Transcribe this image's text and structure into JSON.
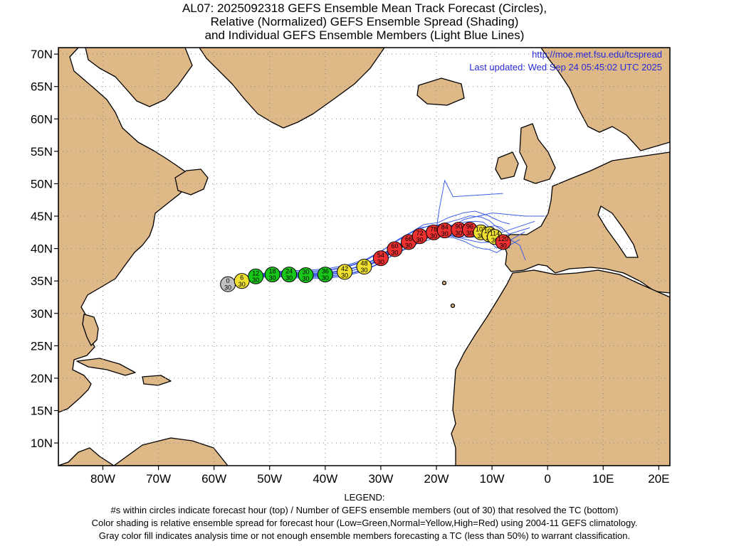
{
  "title": {
    "line1": "AL07: 2025092318 GEFS Ensemble Mean Track Forecast (Circles),",
    "line2": "Relative (Normalized) GEFS Ensemble Spread (Shading)",
    "line3": "and Individual GEFS Ensemble Members (Light Blue Lines)"
  },
  "overlay": {
    "url": "http://moe.met.fsu.edu/tcspread",
    "updated": "Last updated: Wed Sep 24 05:45:02 UTC 2025"
  },
  "axes": {
    "lon_range": [
      -88,
      22
    ],
    "lat_range": [
      6.5,
      71
    ],
    "lon_ticks": [
      "80W",
      "70W",
      "60W",
      "50W",
      "40W",
      "30W",
      "20W",
      "10W",
      "0",
      "10E",
      "20E"
    ],
    "lat_ticks": [
      "70N",
      "65N",
      "60N",
      "55N",
      "50N",
      "45N",
      "40N",
      "35N",
      "30N",
      "25N",
      "20N",
      "15N",
      "10N"
    ]
  },
  "colors": {
    "land": "#deb887",
    "ocean": "#ffffff",
    "members": "#3f5fe6",
    "low": "#18c818",
    "normal": "#f0e030",
    "high": "#ef3030",
    "analysis": "#c0c0c0",
    "overlay_text": "#2a2ad8"
  },
  "track_points": [
    {
      "hour": "0",
      "members": "30",
      "lon": -57.5,
      "lat": 34.5,
      "spread": "analysis"
    },
    {
      "hour": "6",
      "members": "30",
      "lon": -55.0,
      "lat": 35.0,
      "spread": "normal"
    },
    {
      "hour": "12",
      "members": "30",
      "lon": -52.5,
      "lat": 35.7,
      "spread": "low"
    },
    {
      "hour": "18",
      "members": "30",
      "lon": -49.5,
      "lat": 36.0,
      "spread": "low"
    },
    {
      "hour": "24",
      "members": "30",
      "lon": -46.5,
      "lat": 36.0,
      "spread": "low"
    },
    {
      "hour": "30",
      "members": "30",
      "lon": -43.5,
      "lat": 35.9,
      "spread": "low"
    },
    {
      "hour": "36",
      "members": "30",
      "lon": -40.0,
      "lat": 36.0,
      "spread": "low"
    },
    {
      "hour": "42",
      "members": "30",
      "lon": -36.5,
      "lat": 36.4,
      "spread": "normal"
    },
    {
      "hour": "48",
      "members": "30",
      "lon": -33.0,
      "lat": 37.2,
      "spread": "normal"
    },
    {
      "hour": "54",
      "members": "30",
      "lon": -30.0,
      "lat": 38.5,
      "spread": "high"
    },
    {
      "hour": "60",
      "members": "30",
      "lon": -27.5,
      "lat": 39.9,
      "spread": "high"
    },
    {
      "hour": "66",
      "members": "30",
      "lon": -25.0,
      "lat": 41.0,
      "spread": "high"
    },
    {
      "hour": "72",
      "members": "30",
      "lon": -23.0,
      "lat": 41.9,
      "spread": "high"
    },
    {
      "hour": "78",
      "members": "30",
      "lon": -20.5,
      "lat": 42.5,
      "spread": "high"
    },
    {
      "hour": "84",
      "members": "30",
      "lon": -18.5,
      "lat": 42.8,
      "spread": "high"
    },
    {
      "hour": "90",
      "members": "30",
      "lon": -16.0,
      "lat": 42.9,
      "spread": "high"
    },
    {
      "hour": "96",
      "members": "30",
      "lon": -14.0,
      "lat": 42.9,
      "spread": "high"
    },
    {
      "hour": "102",
      "members": "30",
      "lon": -12.0,
      "lat": 42.5,
      "spread": "normal"
    },
    {
      "hour": "108",
      "members": "30",
      "lon": -10.5,
      "lat": 42.2,
      "spread": "normal"
    },
    {
      "hour": "114",
      "members": "30",
      "lon": -9.5,
      "lat": 41.8,
      "spread": "normal"
    },
    {
      "hour": "120",
      "members": "30",
      "lon": -8.0,
      "lat": 41.0,
      "spread": "high"
    }
  ],
  "legend": {
    "heading": "LEGEND:",
    "line1": "#s within circles indicate forecast hour (top) / Number of GEFS ensemble members (out of 30) that resolved the TC (bottom)",
    "line2": "Color shading is relative ensemble spread for forecast hour (Low=Green,Normal=Yellow,High=Red) using 2004-11 GEFS climatology.",
    "line3": "Gray color fill indicates analysis time or not enough ensemble members forecasting a TC (less than 50%) to warrant classification."
  }
}
